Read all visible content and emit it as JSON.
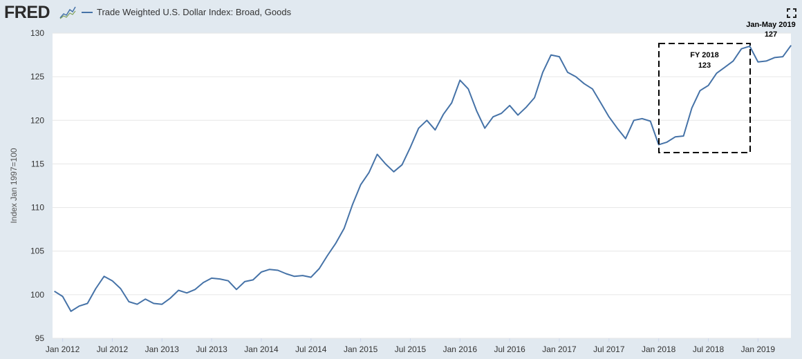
{
  "header": {
    "logo_text": "FRED",
    "legend_label": "Trade Weighted U.S. Dollar Index: Broad, Goods"
  },
  "icons": {
    "logo": "fred-chart-icon",
    "fullscreen": "fullscreen-icon"
  },
  "chart_data": {
    "type": "line",
    "title": "",
    "xlabel": "",
    "ylabel": "Index Jan 1997=100",
    "ylim": [
      95,
      130
    ],
    "yticks": [
      95,
      100,
      105,
      110,
      115,
      120,
      125,
      130
    ],
    "grid": true,
    "x_tick_labels": [
      "Jan 2012",
      "Jul 2012",
      "Jan 2013",
      "Jul 2013",
      "Jan 2014",
      "Jul 2014",
      "Jan 2015",
      "Jul 2015",
      "Jan 2016",
      "Jul 2016",
      "Jan 2017",
      "Jul 2017",
      "Jan 2018",
      "Jul 2018",
      "Jan 2019"
    ],
    "line_color": "#4572a7",
    "series": [
      {
        "name": "Trade Weighted U.S. Dollar Index: Broad, Goods",
        "x": [
          "2011-12",
          "2012-01",
          "2012-02",
          "2012-03",
          "2012-04",
          "2012-05",
          "2012-06",
          "2012-07",
          "2012-08",
          "2012-09",
          "2012-10",
          "2012-11",
          "2012-12",
          "2013-01",
          "2013-02",
          "2013-03",
          "2013-04",
          "2013-05",
          "2013-06",
          "2013-07",
          "2013-08",
          "2013-09",
          "2013-10",
          "2013-11",
          "2013-12",
          "2014-01",
          "2014-02",
          "2014-03",
          "2014-04",
          "2014-05",
          "2014-06",
          "2014-07",
          "2014-08",
          "2014-09",
          "2014-10",
          "2014-11",
          "2014-12",
          "2015-01",
          "2015-02",
          "2015-03",
          "2015-04",
          "2015-05",
          "2015-06",
          "2015-07",
          "2015-08",
          "2015-09",
          "2015-10",
          "2015-11",
          "2015-12",
          "2016-01",
          "2016-02",
          "2016-03",
          "2016-04",
          "2016-05",
          "2016-06",
          "2016-07",
          "2016-08",
          "2016-09",
          "2016-10",
          "2016-11",
          "2016-12",
          "2017-01",
          "2017-02",
          "2017-03",
          "2017-04",
          "2017-05",
          "2017-06",
          "2017-07",
          "2017-08",
          "2017-09",
          "2017-10",
          "2017-11",
          "2017-12",
          "2018-01",
          "2018-02",
          "2018-03",
          "2018-04",
          "2018-05",
          "2018-06",
          "2018-07",
          "2018-08",
          "2018-09",
          "2018-10",
          "2018-11",
          "2018-12",
          "2019-01",
          "2019-02",
          "2019-03",
          "2019-04",
          "2019-05"
        ],
        "values": [
          100.4,
          99.8,
          98.1,
          98.7,
          99.0,
          100.7,
          102.1,
          101.6,
          100.7,
          99.2,
          98.9,
          99.5,
          99.0,
          98.9,
          99.6,
          100.5,
          100.2,
          100.6,
          101.4,
          101.9,
          101.8,
          101.6,
          100.6,
          101.5,
          101.7,
          102.6,
          102.9,
          102.8,
          102.4,
          102.1,
          102.2,
          102.0,
          103.0,
          104.5,
          105.9,
          107.6,
          110.3,
          112.6,
          114.0,
          116.1,
          115.0,
          114.1,
          114.9,
          116.9,
          119.1,
          120.0,
          118.9,
          120.7,
          122.0,
          124.6,
          123.6,
          121.1,
          119.1,
          120.4,
          120.8,
          121.7,
          120.6,
          121.5,
          122.6,
          125.5,
          127.5,
          127.3,
          125.5,
          125.0,
          124.2,
          123.6,
          122.0,
          120.4,
          119.1,
          117.9,
          120.0,
          120.2,
          119.9,
          117.2,
          117.5,
          118.1,
          118.2,
          121.4,
          123.4,
          124.0,
          125.4,
          126.1,
          126.8,
          128.2,
          128.5,
          126.7,
          126.8,
          127.2,
          127.3,
          128.6
        ]
      }
    ],
    "annotations": [
      {
        "label": "FY 2018",
        "value": "123"
      },
      {
        "label": "Jan-May 2019",
        "value": "127"
      }
    ]
  }
}
